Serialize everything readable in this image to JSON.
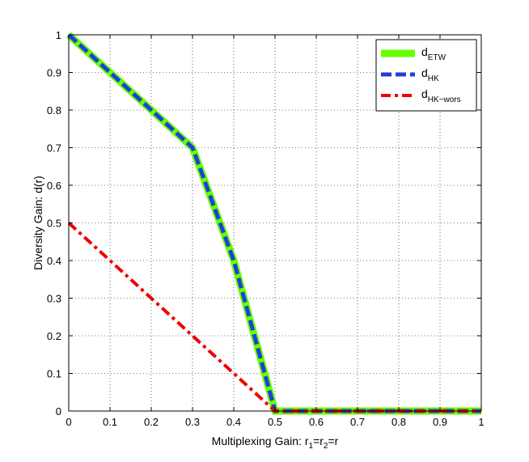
{
  "chart_data": {
    "type": "line",
    "title": "",
    "xlabel": {
      "parts": [
        {
          "text": "Multiplexing Gain: r",
          "sub": false
        },
        {
          "text": "1",
          "sub": true
        },
        {
          "text": "=r",
          "sub": false
        },
        {
          "text": "2",
          "sub": true
        },
        {
          "text": "=r",
          "sub": false
        }
      ]
    },
    "ylabel": "Diversity Gain: d(r)",
    "xlim": [
      0,
      1
    ],
    "ylim": [
      0,
      1
    ],
    "xticks": [
      "0",
      "0.1",
      "0.2",
      "0.3",
      "0.4",
      "0.5",
      "0.6",
      "0.7",
      "0.8",
      "0.9",
      "1"
    ],
    "yticks": [
      "0",
      "0.1",
      "0.2",
      "0.3",
      "0.4",
      "0.5",
      "0.6",
      "0.7",
      "0.8",
      "0.9",
      "1"
    ],
    "grid": true,
    "legend_position": "top-right",
    "series": [
      {
        "name": "d",
        "name_sub": "ETW",
        "color": "#66ff00",
        "style": "solid",
        "x": [
          0,
          0.3,
          0.4,
          0.5,
          1.0
        ],
        "y": [
          1.0,
          0.7,
          0.4,
          0.0,
          0.0
        ]
      },
      {
        "name": "d",
        "name_sub": "HK",
        "color": "#1f3fdc",
        "style": "dashed",
        "x": [
          0,
          0.3,
          0.4,
          0.5,
          1.0
        ],
        "y": [
          1.0,
          0.7,
          0.4,
          0.0,
          0.0
        ]
      },
      {
        "name": "d",
        "name_sub": "HK−wors",
        "color": "#ee0000",
        "style": "dashdot",
        "x": [
          0,
          0.5,
          1.0
        ],
        "y": [
          0.5,
          0.0,
          0.0
        ]
      }
    ]
  }
}
